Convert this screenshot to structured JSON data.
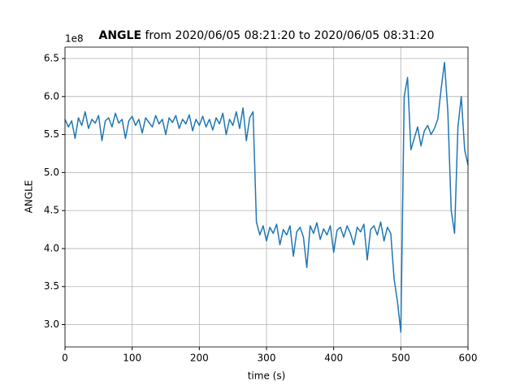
{
  "chart_data": {
    "type": "line",
    "title_bold": "ANGLE",
    "title": "from 2020/06/05 08:21:20 to 2020/06/05 08:31:20",
    "xlabel": "time (s)",
    "ylabel": "ANGLE",
    "y_offset_label": "1e8",
    "x": [
      0,
      5,
      10,
      15,
      20,
      25,
      30,
      35,
      40,
      45,
      50,
      55,
      60,
      65,
      70,
      75,
      80,
      85,
      90,
      95,
      100,
      105,
      110,
      115,
      120,
      125,
      130,
      135,
      140,
      145,
      150,
      155,
      160,
      165,
      170,
      175,
      180,
      185,
      190,
      195,
      200,
      205,
      210,
      215,
      220,
      225,
      230,
      235,
      240,
      245,
      250,
      255,
      260,
      265,
      270,
      275,
      280,
      285,
      290,
      295,
      300,
      305,
      310,
      315,
      320,
      325,
      330,
      335,
      340,
      345,
      350,
      355,
      360,
      365,
      370,
      375,
      380,
      385,
      390,
      395,
      400,
      405,
      410,
      415,
      420,
      425,
      430,
      435,
      440,
      445,
      450,
      455,
      460,
      465,
      470,
      475,
      480,
      485,
      490,
      495,
      500,
      505,
      510,
      515,
      520,
      525,
      530,
      535,
      540,
      545,
      550,
      555,
      560,
      565,
      570,
      575,
      580,
      585,
      590,
      595,
      600
    ],
    "series": [
      {
        "color": "#1f77b4",
        "values": [
          5.7,
          5.6,
          5.68,
          5.45,
          5.72,
          5.62,
          5.8,
          5.58,
          5.7,
          5.65,
          5.75,
          5.42,
          5.68,
          5.72,
          5.6,
          5.78,
          5.65,
          5.7,
          5.45,
          5.68,
          5.74,
          5.62,
          5.7,
          5.52,
          5.72,
          5.66,
          5.6,
          5.75,
          5.64,
          5.7,
          5.5,
          5.72,
          5.66,
          5.75,
          5.58,
          5.7,
          5.64,
          5.76,
          5.55,
          5.7,
          5.62,
          5.74,
          5.6,
          5.7,
          5.56,
          5.72,
          5.64,
          5.78,
          5.5,
          5.7,
          5.62,
          5.8,
          5.58,
          5.85,
          5.42,
          5.72,
          5.8,
          4.35,
          4.18,
          4.3,
          4.1,
          4.28,
          4.2,
          4.32,
          4.05,
          4.25,
          4.18,
          4.3,
          3.9,
          4.22,
          4.28,
          4.15,
          3.75,
          4.3,
          4.2,
          4.34,
          4.12,
          4.26,
          4.18,
          4.3,
          3.95,
          4.24,
          4.28,
          4.15,
          4.3,
          4.2,
          4.05,
          4.28,
          4.22,
          4.32,
          3.85,
          4.25,
          4.3,
          4.18,
          4.35,
          4.1,
          4.28,
          4.2,
          3.6,
          3.3,
          2.9,
          6.0,
          6.25,
          5.3,
          5.45,
          5.6,
          5.35,
          5.55,
          5.62,
          5.5,
          5.58,
          5.7,
          6.1,
          6.45,
          5.8,
          4.5,
          4.2,
          5.6,
          6.0,
          5.3,
          5.1
        ]
      }
    ],
    "xlim": [
      0,
      600
    ],
    "xticks": [
      0,
      100,
      200,
      300,
      400,
      500,
      600
    ],
    "ylim": [
      2.706,
      6.65
    ],
    "yticks": [
      {
        "value": 3,
        "label": "3.0"
      },
      {
        "value": 3.5,
        "label": "3.5"
      },
      {
        "value": 4,
        "label": "4.0"
      },
      {
        "value": 4.5,
        "label": "4.5"
      },
      {
        "value": 5,
        "label": "5.0"
      },
      {
        "value": 5.5,
        "label": "5.5"
      },
      {
        "value": 6,
        "label": "6.0"
      },
      {
        "value": 6.5,
        "label": "6.5"
      }
    ],
    "grid": true
  }
}
